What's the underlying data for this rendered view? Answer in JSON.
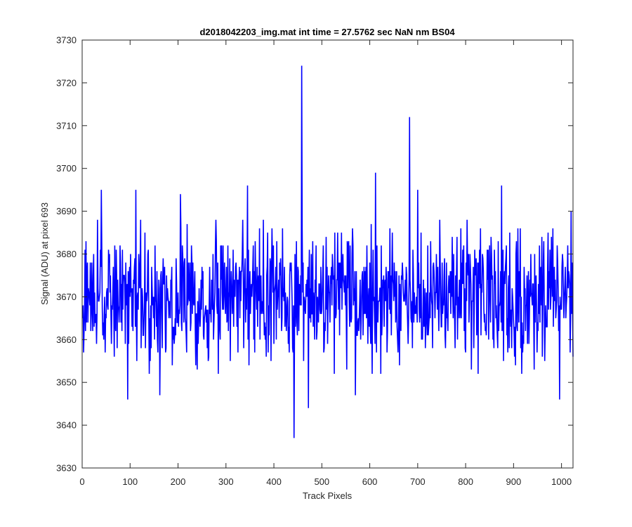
{
  "chart_data": {
    "type": "line",
    "title": "d2018042203_img.mat int time = 27.5762 sec  NaN nm BS04",
    "xlabel": "Track Pixels",
    "ylabel": "Signal (ADU) at pixel 693",
    "xlim": [
      0,
      1024
    ],
    "ylim": [
      3630,
      3730
    ],
    "xticks": [
      0,
      100,
      200,
      300,
      400,
      500,
      600,
      700,
      800,
      900,
      1000
    ],
    "yticks": [
      3630,
      3640,
      3650,
      3660,
      3670,
      3680,
      3690,
      3700,
      3710,
      3720,
      3730
    ],
    "grid": false,
    "legend": "none",
    "line_color": "#0000ff",
    "series_points": 1024,
    "baseline_mean": 3670,
    "noise_band": [
      3655,
      3685
    ],
    "notable_points": [
      {
        "x": 1,
        "y": 3665
      },
      {
        "x": 40,
        "y": 3695
      },
      {
        "x": 95,
        "y": 3646
      },
      {
        "x": 112,
        "y": 3695
      },
      {
        "x": 162,
        "y": 3647
      },
      {
        "x": 205,
        "y": 3694
      },
      {
        "x": 345,
        "y": 3696
      },
      {
        "x": 442,
        "y": 3637
      },
      {
        "x": 458,
        "y": 3724
      },
      {
        "x": 472,
        "y": 3644
      },
      {
        "x": 570,
        "y": 3647
      },
      {
        "x": 612,
        "y": 3699
      },
      {
        "x": 683,
        "y": 3712
      },
      {
        "x": 700,
        "y": 3695
      },
      {
        "x": 875,
        "y": 3696
      },
      {
        "x": 996,
        "y": 3646
      },
      {
        "x": 1020,
        "y": 3690
      },
      {
        "x": 1024,
        "y": 3656
      }
    ]
  }
}
